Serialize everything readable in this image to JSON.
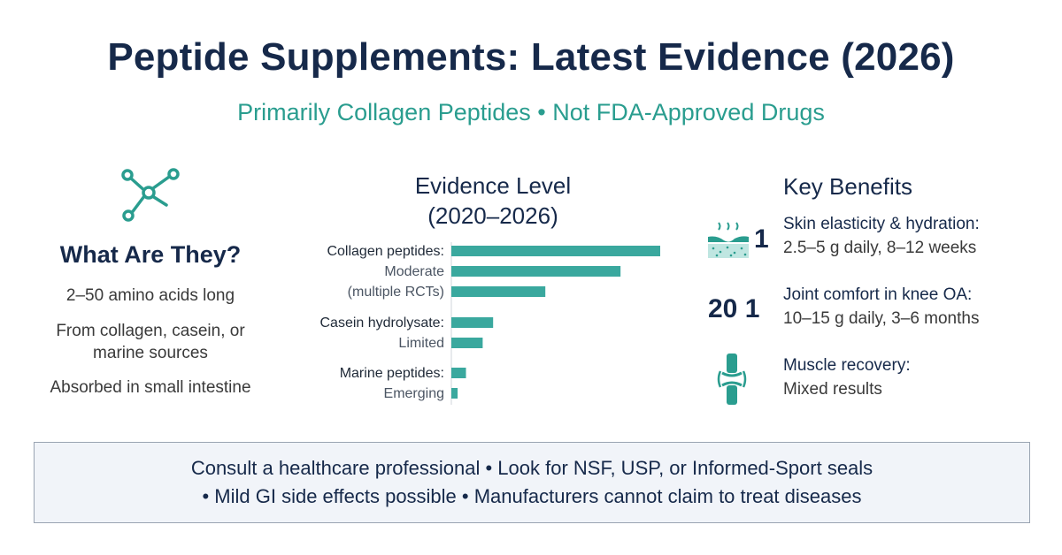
{
  "header": {
    "title": "Peptide Supplements: Latest Evidence (2026)",
    "subtitle": "Primarily Collagen Peptides • Not FDA-Approved Drugs"
  },
  "left": {
    "icon": "molecule-icon",
    "heading": "What Are They?",
    "items": [
      "2–50 amino acids long",
      "From collagen, casein, or",
      "marine sources",
      "Absorbed in small intestine"
    ]
  },
  "chart_data": {
    "type": "bar",
    "orientation": "horizontal",
    "title": "Evidence Level",
    "subtitle": "(2020–2026)",
    "groups": [
      {
        "label": "Collagen peptides:",
        "sublabels": [
          "Moderate",
          "(multiple RCTs)"
        ],
        "values": [
          100,
          81,
          45
        ]
      },
      {
        "label": "Casein hydrolysate:",
        "sublabels": [
          "Limited"
        ],
        "values": [
          20,
          15
        ]
      },
      {
        "label": "Marine peptides:",
        "sublabels": [
          "Emerging"
        ],
        "values": [
          7,
          3
        ]
      }
    ],
    "color": "#3aa89e"
  },
  "right": {
    "title": "Key Benefits",
    "benefits": [
      {
        "icon": "skin-layers-icon",
        "num": "1",
        "title": "Skin elasticity & hydration:",
        "detail": "2.5–5 g daily, 8–12 weeks"
      },
      {
        "icon": "",
        "num": "20 1",
        "title": "Joint comfort in knee OA:",
        "detail": "10–15 g daily, 3–6 months"
      },
      {
        "icon": "muscle-knee-icon",
        "num": "",
        "title": "Muscle recovery:",
        "detail": "Mixed results"
      }
    ]
  },
  "footer": {
    "line1": "Consult a healthcare professional • Look for NSF, USP, or Informed-Sport seals",
    "line2": "• Mild GI side effects possible • Manufacturers cannot claim to treat diseases"
  }
}
